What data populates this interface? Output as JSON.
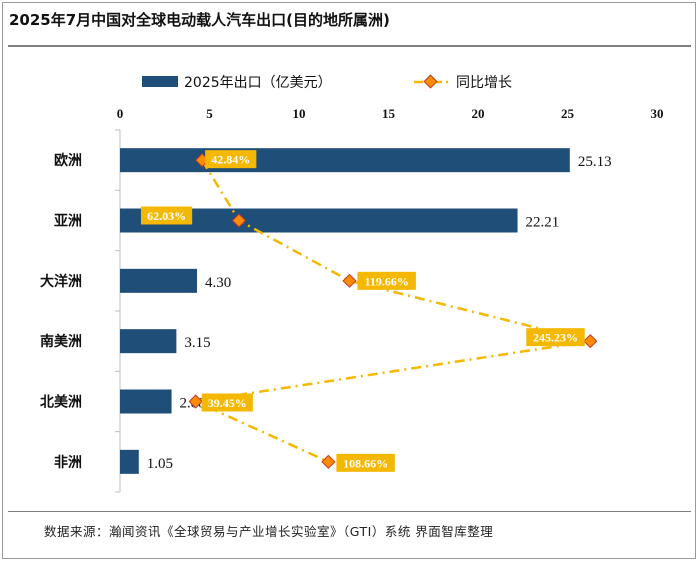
{
  "header": {
    "title": "2025年7月中国对全球电动载人汽车出口(目的地所属洲)"
  },
  "footer": {
    "source": "数据来源：瀚闻资讯《全球贸易与产业增长实验室》（GTI）系统    界面智库整理"
  },
  "colors": {
    "bar": "#1f4e79",
    "line": "#f5b800",
    "marker_fill": "#ff8c00",
    "marker_edge": "#c0392b",
    "label_bg": "#f5b800"
  },
  "chart_data": {
    "type": "bar",
    "orientation": "horizontal",
    "categories": [
      "欧洲",
      "亚洲",
      "大洋洲",
      "南美洲",
      "北美洲",
      "非洲"
    ],
    "series": [
      {
        "name": "2025年出口（亿美元）",
        "type": "bar",
        "values": [
          25.13,
          22.21,
          4.3,
          3.15,
          2.88,
          1.05
        ],
        "value_labels": [
          "25.13",
          "22.21",
          "4.30",
          "3.15",
          "2.88",
          "1.05"
        ]
      },
      {
        "name": "同比增长",
        "type": "line",
        "values": [
          42.84,
          62.03,
          119.66,
          245.23,
          39.45,
          108.66
        ],
        "value_labels": [
          "42.84%",
          "62.03%",
          "119.66%",
          "245.23%",
          "39.45%",
          "108.66%"
        ]
      }
    ],
    "x_axis": {
      "ticks": [
        "0",
        "5",
        "10",
        "15",
        "20",
        "25",
        "30"
      ],
      "range": [
        0,
        30
      ],
      "position": "top"
    },
    "legend": {
      "position": "top"
    },
    "grid": false
  }
}
